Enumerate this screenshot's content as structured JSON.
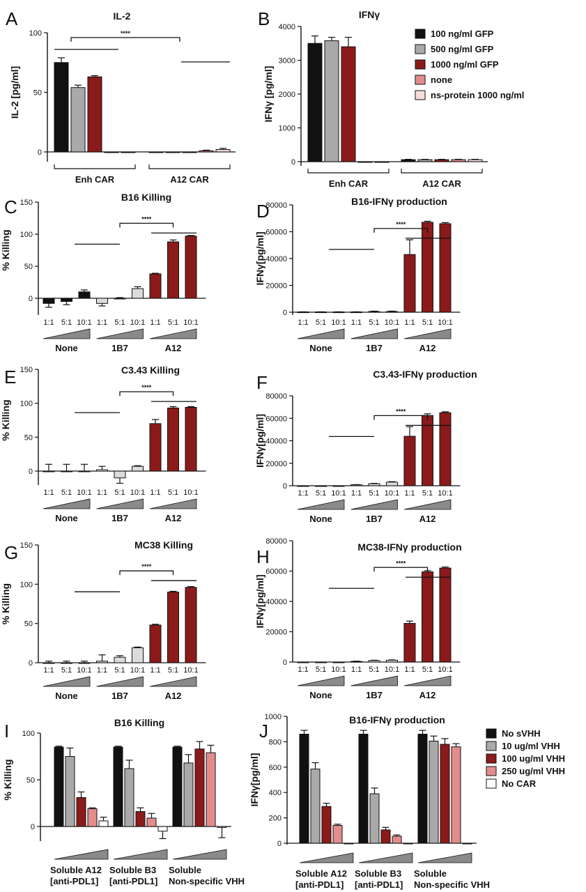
{
  "colors": {
    "black": "#111111",
    "gray": "#a9a9a9",
    "darkred": "#8b1a1a",
    "pink": "#e38c8c",
    "lightpink": "#f6dede",
    "white": "#ffffff",
    "lightgray": "#dcdcdc"
  },
  "legend_B": [
    "100 ng/ml GFP",
    "500 ng/ml GFP",
    "1000 ng/ml GFP",
    "none",
    "ns-protein 1000 ng/ml"
  ],
  "legend_J": [
    "No sVHH",
    "10 ug/ml VHH",
    "100 ug/ml VHH",
    "250 ug/ml VHH",
    "No CAR"
  ],
  "chart_data": [
    {
      "panel": "A",
      "type": "bar",
      "title": "IL-2",
      "ylabel": "IL-2 [pg/ml]",
      "ylim": [
        0,
        100
      ],
      "yticks": [
        "0",
        "50",
        "100"
      ],
      "groups": [
        "Enh CAR",
        "A12 CAR"
      ],
      "values": [
        75,
        54,
        63,
        0,
        0,
        0,
        0,
        0,
        1,
        2
      ],
      "errors": [
        4,
        2,
        1,
        0,
        0,
        0,
        0,
        0,
        0.5,
        1
      ],
      "colors": [
        "black",
        "gray",
        "darkred",
        "pink",
        "lightpink",
        "black",
        "gray",
        "darkred",
        "pink",
        "lightpink"
      ],
      "significance": "****"
    },
    {
      "panel": "B",
      "type": "bar",
      "title": "IFNγ",
      "ylabel": "IFNγ [pg/ml]",
      "ylim": [
        0,
        4000
      ],
      "yticks": [
        "0",
        "1000",
        "2000",
        "3000",
        "4000"
      ],
      "groups": [
        "Enh CAR",
        "A12 CAR"
      ],
      "values": [
        3500,
        3580,
        3400,
        0,
        0,
        60,
        60,
        60,
        60,
        60
      ],
      "errors": [
        220,
        100,
        280,
        0,
        0,
        10,
        10,
        10,
        10,
        10
      ],
      "colors": [
        "black",
        "gray",
        "darkred",
        "pink",
        "lightpink",
        "black",
        "gray",
        "darkred",
        "pink",
        "lightpink"
      ]
    },
    {
      "panel": "C",
      "type": "bar",
      "title": "B16 Killing",
      "ylabel": "% Killing",
      "ylim": [
        -20,
        150
      ],
      "yticks": [
        "0",
        "50",
        "100",
        "150"
      ],
      "ratios": [
        "1:1",
        "5:1",
        "10:1",
        "1:1",
        "5:1",
        "10:1",
        "1:1",
        "5:1",
        "10:1"
      ],
      "groups": [
        "None",
        "1B7",
        "A12"
      ],
      "values": [
        -8,
        -5,
        10,
        -8,
        0,
        15,
        38,
        88,
        97
      ],
      "errors": [
        6,
        5,
        3,
        4,
        1,
        3,
        1,
        3,
        1
      ],
      "colors": [
        "black",
        "black",
        "black",
        "lightgray",
        "lightgray",
        "lightgray",
        "darkred",
        "darkred",
        "darkred"
      ],
      "significance": "****"
    },
    {
      "panel": "D",
      "type": "bar",
      "title": "B16-IFNγ production",
      "ylabel": "IFNγ[pg/ml]",
      "ylim": [
        0,
        80000
      ],
      "yticks": [
        "0",
        "20000",
        "40000",
        "60000",
        "80000"
      ],
      "ratios": [
        "1:1",
        "5:1",
        "10:1",
        "1:1",
        "5:1",
        "10:1",
        "1:1",
        "5:1",
        "10:1"
      ],
      "groups": [
        "None",
        "1B7",
        "A12"
      ],
      "values": [
        200,
        200,
        200,
        200,
        500,
        500,
        43000,
        67000,
        66000
      ],
      "errors": [
        100,
        100,
        100,
        100,
        300,
        300,
        11000,
        800,
        800
      ],
      "colors": [
        "white",
        "white",
        "white",
        "lightgray",
        "lightgray",
        "lightgray",
        "darkred",
        "darkred",
        "darkred"
      ],
      "significance": "****"
    },
    {
      "panel": "E",
      "type": "bar",
      "title": "C3.43 Killing",
      "ylabel": "% Killing",
      "ylim": [
        -25,
        150
      ],
      "yticks": [
        "0",
        "50",
        "100",
        "150"
      ],
      "ratios": [
        "1:1",
        "5:1",
        "10:1",
        "1:1",
        "5:1",
        "10:1",
        "1:1",
        "5:1",
        "10:1"
      ],
      "groups": [
        "None",
        "1B7",
        "A12"
      ],
      "values": [
        0,
        0,
        0,
        2,
        -10,
        7,
        70,
        93,
        94
      ],
      "errors": [
        10,
        10,
        10,
        5,
        8,
        1,
        6,
        2,
        1
      ],
      "colors": [
        "white",
        "white",
        "white",
        "white",
        "lightgray",
        "lightgray",
        "darkred",
        "darkred",
        "darkred"
      ],
      "significance": "****"
    },
    {
      "panel": "F",
      "type": "bar",
      "title": "C3.43-IFNγ production",
      "ylabel": "IFNγ[pg/ml]",
      "ylim": [
        0,
        80000
      ],
      "yticks": [
        "0",
        "20000",
        "40000",
        "60000",
        "80000"
      ],
      "ratios": [
        "1:1",
        "5:1",
        "10:1",
        "1:1",
        "5:1",
        "10:1",
        "1:1",
        "5:1",
        "10:1"
      ],
      "groups": [
        "None",
        "1B7",
        "A12"
      ],
      "values": [
        0,
        0,
        0,
        800,
        1800,
        3200,
        44000,
        62500,
        65000
      ],
      "errors": [
        0,
        0,
        0,
        200,
        300,
        400,
        8500,
        1500,
        800
      ],
      "colors": [
        "white",
        "white",
        "white",
        "lightgray",
        "lightgray",
        "lightgray",
        "darkred",
        "darkred",
        "darkred"
      ],
      "significance": "****"
    },
    {
      "panel": "G",
      "type": "bar",
      "title": "MC38 Killing",
      "ylabel": "% Killing",
      "ylim": [
        -10,
        150
      ],
      "yticks": [
        "0",
        "50",
        "100",
        "150"
      ],
      "ratios": [
        "1:1",
        "5:1",
        "10:1",
        "1:1",
        "5:1",
        "10:1",
        "1:1",
        "5:1",
        "10:1"
      ],
      "groups": [
        "None",
        "1B7",
        "A12"
      ],
      "values": [
        0,
        0,
        0,
        2,
        7,
        19,
        48,
        90,
        96
      ],
      "errors": [
        2,
        2,
        2,
        8,
        2,
        1,
        1,
        1,
        1
      ],
      "colors": [
        "white",
        "white",
        "white",
        "lightgray",
        "lightgray",
        "lightgray",
        "darkred",
        "darkred",
        "darkred"
      ],
      "significance": "****"
    },
    {
      "panel": "H",
      "type": "bar",
      "title": "MC38-IFNγ production",
      "ylabel": "IFNγ[pg/ml]",
      "ylim": [
        0,
        80000
      ],
      "yticks": [
        "0",
        "20000",
        "40000",
        "60000",
        "80000"
      ],
      "ratios": [
        "1:1",
        "5:1",
        "10:1",
        "1:1",
        "5:1",
        "10:1",
        "1:1",
        "5:1",
        "10:1"
      ],
      "groups": [
        "None",
        "1B7",
        "A12"
      ],
      "values": [
        0,
        0,
        0,
        400,
        1000,
        1200,
        25500,
        59500,
        62000
      ],
      "errors": [
        0,
        0,
        0,
        200,
        200,
        200,
        1500,
        800,
        700
      ],
      "colors": [
        "white",
        "white",
        "white",
        "lightgray",
        "lightgray",
        "lightgray",
        "darkred",
        "darkred",
        "darkred"
      ],
      "significance": "****"
    },
    {
      "panel": "I",
      "type": "bar",
      "title": "B16 Killing",
      "ylabel": "% Killing",
      "ylim": [
        -30,
        100
      ],
      "yticks": [
        "0",
        "50",
        "100"
      ],
      "groups": [
        "Soluble A12\n[anti-PDL1]",
        "Soluble B3\n[anti-PDL1]",
        "Soluble\nNon-specific VHH"
      ],
      "values": [
        85,
        75,
        31,
        19,
        6,
        85,
        62,
        16,
        9,
        -5,
        85,
        68,
        83,
        79,
        -1
      ],
      "errors": [
        1,
        9,
        6,
        1,
        4,
        1,
        9,
        4,
        5,
        8,
        1,
        9,
        8,
        8,
        11
      ],
      "colors": [
        "black",
        "gray",
        "darkred",
        "pink",
        "white",
        "black",
        "gray",
        "darkred",
        "pink",
        "white",
        "black",
        "gray",
        "darkred",
        "pink",
        "white"
      ]
    },
    {
      "panel": "J",
      "type": "bar",
      "title": "B16-IFNγ production",
      "ylabel": "IFNγ[pg/ml]",
      "ylim": [
        0,
        1000
      ],
      "yticks": [
        "0",
        "200",
        "400",
        "600",
        "800",
        "1000"
      ],
      "groups": [
        "Soluble A12\n[anti-PDL1]",
        "Soluble B3\n[anti-PDL1]",
        "Soluble\nNon-specific VHH"
      ],
      "values": [
        860,
        585,
        290,
        140,
        0,
        860,
        390,
        105,
        55,
        0,
        860,
        805,
        780,
        760,
        0
      ],
      "errors": [
        30,
        50,
        25,
        10,
        0,
        30,
        45,
        20,
        10,
        0,
        30,
        40,
        45,
        25,
        0
      ],
      "colors": [
        "black",
        "gray",
        "darkred",
        "pink",
        "white",
        "black",
        "gray",
        "darkred",
        "pink",
        "white",
        "black",
        "gray",
        "darkred",
        "pink",
        "white"
      ]
    }
  ]
}
